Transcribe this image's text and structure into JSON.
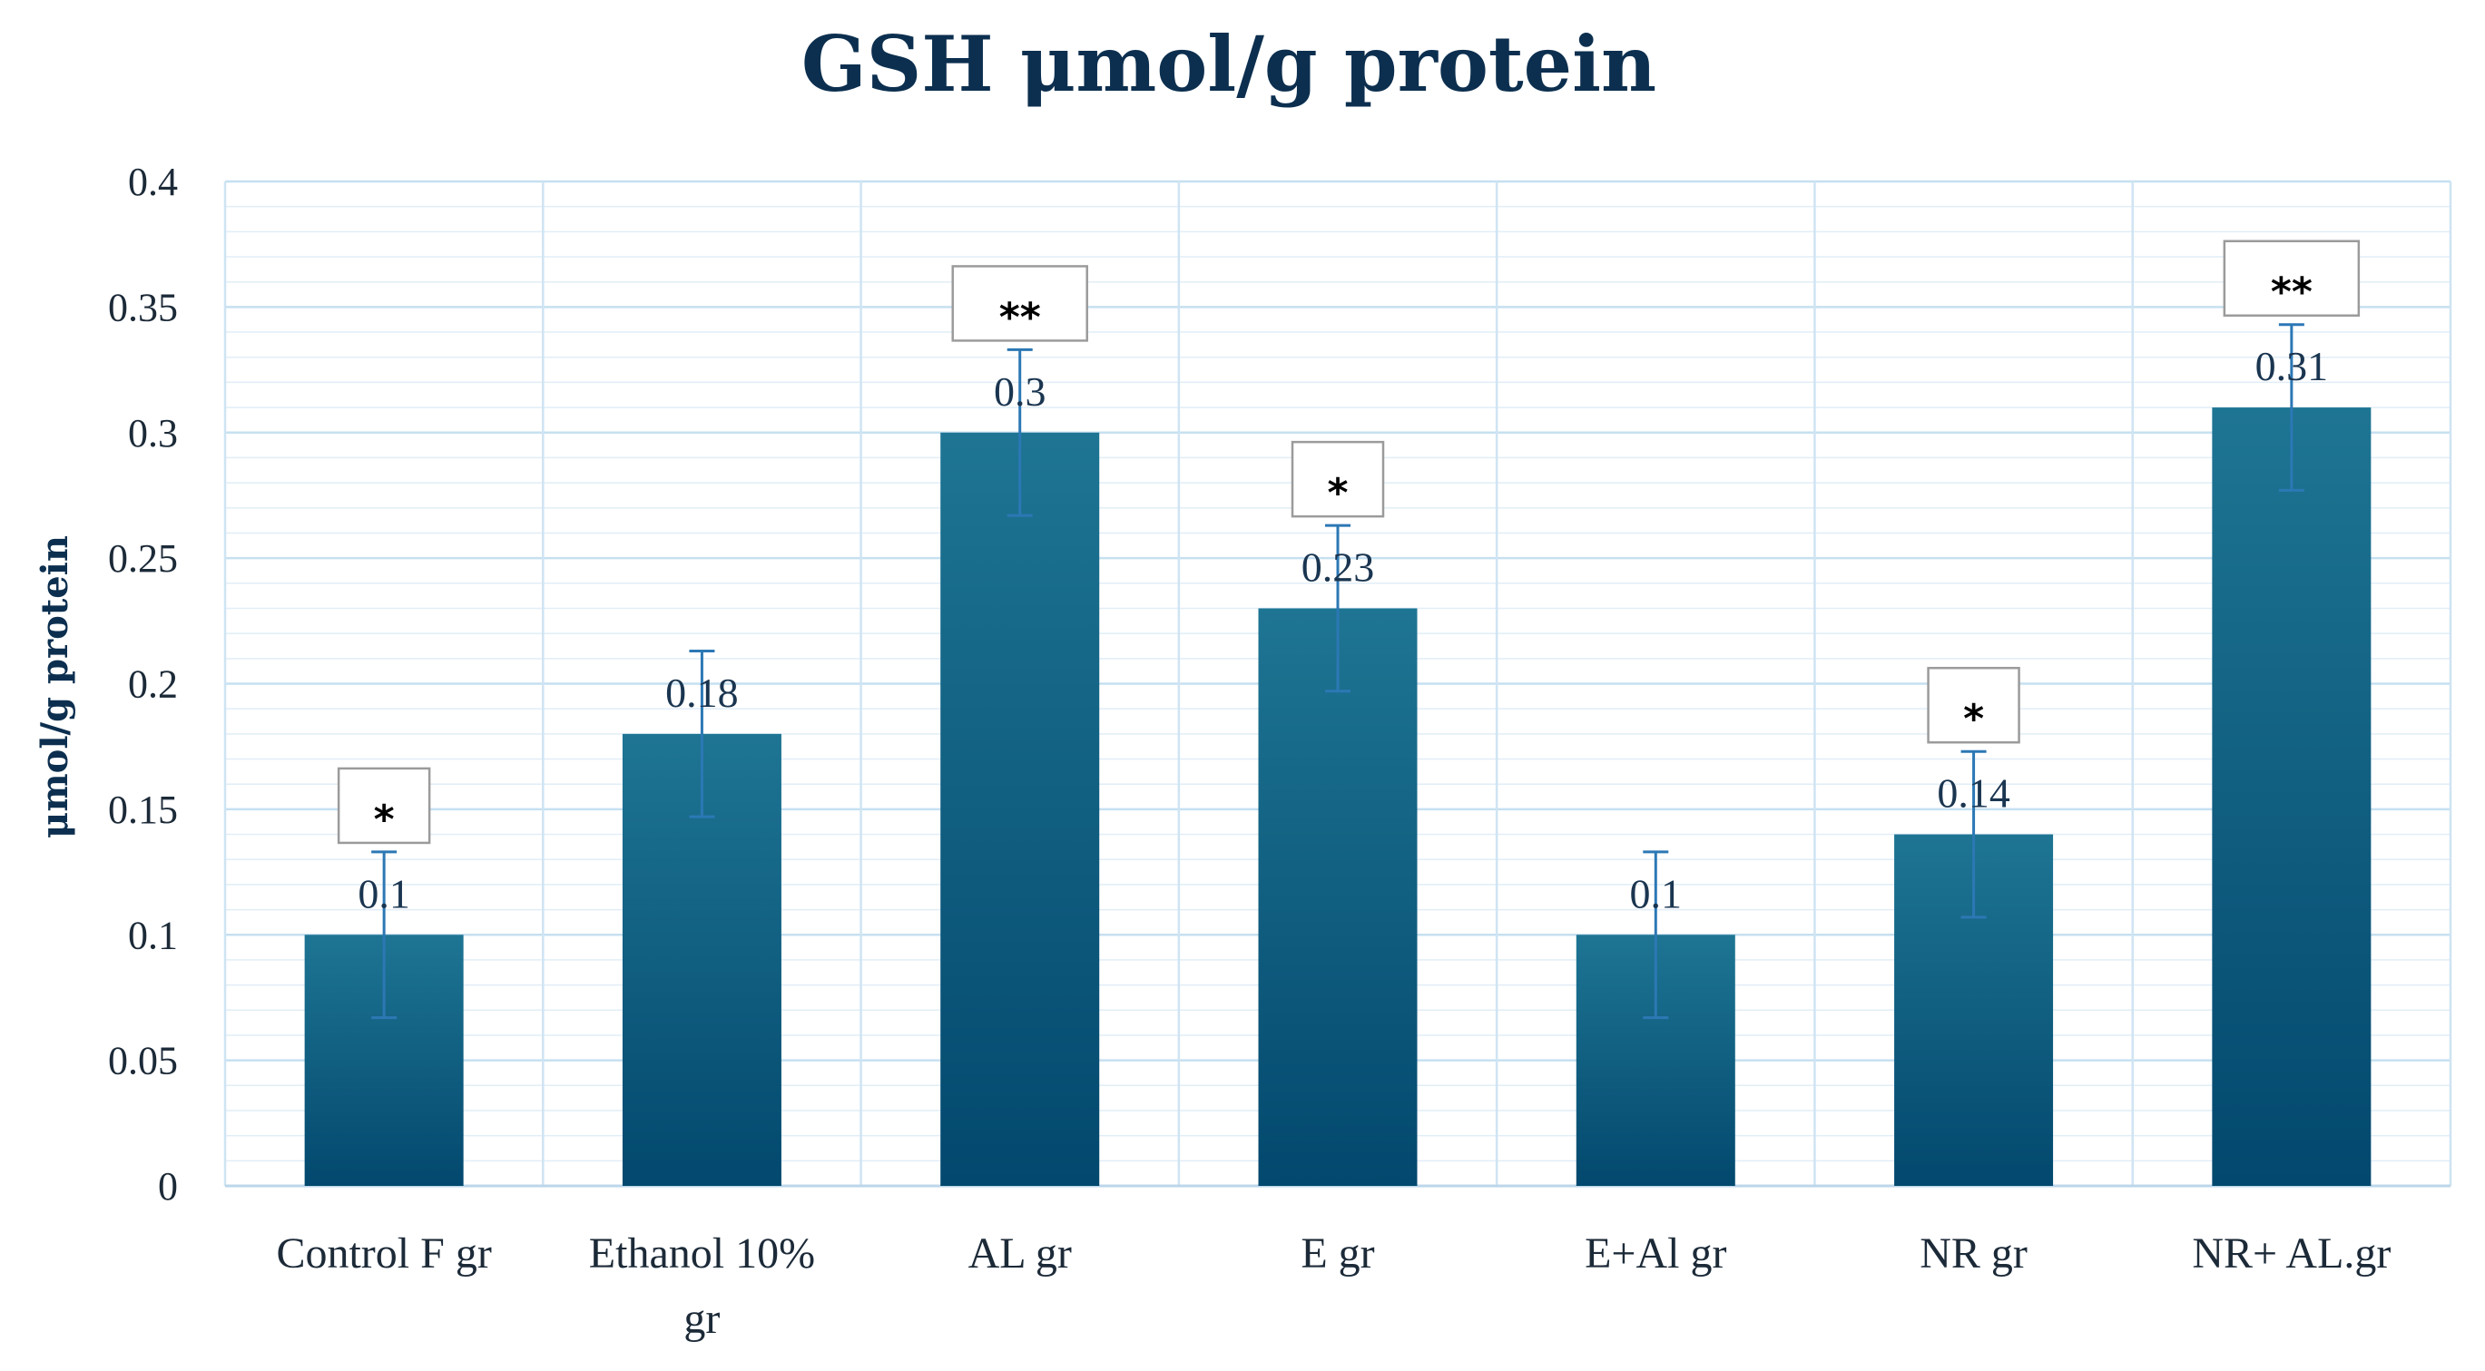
{
  "chart_data": {
    "type": "bar",
    "title": "GSH μmol/g protein",
    "xlabel": "",
    "ylabel": "μmol/g protein",
    "ylim": [
      0,
      0.4
    ],
    "ytick_step": 0.05,
    "ytick_labels": [
      "0",
      "0.05",
      "0.1",
      "0.15",
      "0.2",
      "0.25",
      "0.3",
      "0.35",
      "0.4"
    ],
    "grid": true,
    "categories": [
      [
        "Control F gr"
      ],
      [
        "Ethanol 10%",
        "gr"
      ],
      [
        "AL gr"
      ],
      [
        "E gr"
      ],
      [
        "E+Al gr"
      ],
      [
        "NR gr"
      ],
      [
        "NR+ AL.gr"
      ]
    ],
    "values": [
      0.1,
      0.18,
      0.3,
      0.23,
      0.1,
      0.14,
      0.31
    ],
    "data_labels": [
      "0.1",
      "0.18",
      "0.3",
      "0.23",
      "0.1",
      "0.14",
      "0.31"
    ],
    "error": [
      0.033,
      0.033,
      0.033,
      0.033,
      0.033,
      0.033,
      0.033
    ],
    "significance": [
      "*",
      "",
      "**",
      "*",
      "",
      "*",
      "**"
    ],
    "colors": {
      "bar_top": "#1e7593",
      "bar_bottom": "#03486e",
      "error_bar": "#2c78b5"
    }
  }
}
